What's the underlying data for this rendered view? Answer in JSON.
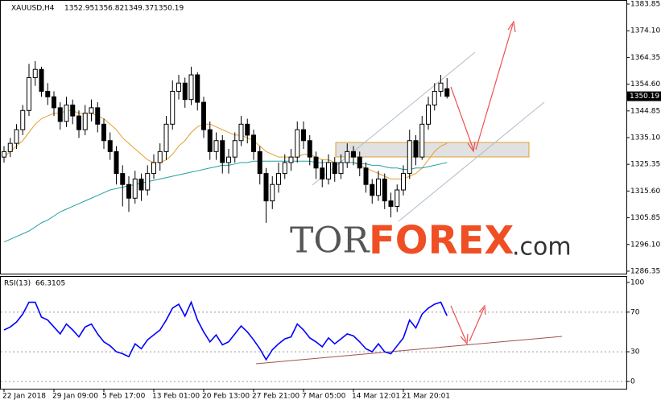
{
  "chart_data": [
    {
      "type": "candlestick",
      "title": "XAUUSD,H4",
      "watermark": {
        "part1": "TOR",
        "part2": "FOREX",
        "part3": ".com"
      },
      "categories": [
        "22 Jan 2018",
        null,
        null,
        null,
        null,
        null,
        null,
        null,
        "29 Jan 09:00",
        null,
        null,
        null,
        null,
        null,
        null,
        null,
        "5 Feb 17:00",
        null,
        null,
        null,
        null,
        null,
        null,
        null,
        "13 Feb 01:00",
        null,
        null,
        null,
        null,
        null,
        null,
        null,
        "20 Feb 13:00",
        null,
        null,
        null,
        null,
        null,
        null,
        null,
        "27 Feb 21:00",
        null,
        null,
        null,
        null,
        null,
        null,
        null,
        "7 Mar 05:00",
        null,
        null,
        null,
        null,
        null,
        null,
        null,
        "14 Mar 12:01",
        null,
        null,
        null,
        null,
        null,
        null,
        null,
        "21 Mar 20:01",
        null,
        null,
        null,
        null,
        null,
        null,
        null
      ],
      "open": [
        1328,
        1330,
        1333,
        1338,
        1345,
        1357,
        1360,
        1352,
        1350,
        1346,
        1341,
        1347,
        1343,
        1338,
        1344,
        1346,
        1340,
        1334,
        1330,
        1322,
        1318,
        1313,
        1320,
        1316,
        1322,
        1326,
        1330,
        1340,
        1352,
        1355,
        1349,
        1358,
        1348,
        1338,
        1330,
        1334,
        1326,
        1328,
        1334,
        1340,
        1336,
        1330,
        1322,
        1312,
        1318,
        1322,
        1326,
        1328,
        1338,
        1334,
        1328,
        1324,
        1320,
        1326,
        1322,
        1326,
        1330,
        1328,
        1324,
        1318,
        1314,
        1320,
        1312,
        1310,
        1316,
        1322,
        1334,
        1328,
        1340,
        1347,
        1352,
        1352.95
      ],
      "high": [
        1332,
        1335,
        1340,
        1347,
        1362,
        1363,
        1361,
        1355,
        1352,
        1348,
        1350,
        1349,
        1345,
        1347,
        1349,
        1348,
        1342,
        1337,
        1332,
        1325,
        1321,
        1323,
        1322,
        1325,
        1329,
        1333,
        1343,
        1356,
        1358,
        1357,
        1361,
        1359,
        1350,
        1341,
        1337,
        1336,
        1331,
        1337,
        1343,
        1342,
        1338,
        1332,
        1324,
        1321,
        1326,
        1329,
        1331,
        1341,
        1341,
        1336,
        1330,
        1327,
        1329,
        1328,
        1329,
        1333,
        1332,
        1330,
        1326,
        1320,
        1323,
        1322,
        1315,
        1318,
        1325,
        1338,
        1336,
        1343,
        1350,
        1355,
        1358,
        1356.82
      ],
      "low": [
        1326,
        1328,
        1331,
        1336,
        1343,
        1354,
        1350,
        1347,
        1343,
        1338,
        1339,
        1340,
        1335,
        1336,
        1341,
        1337,
        1331,
        1327,
        1318,
        1310,
        1308,
        1311,
        1312,
        1314,
        1320,
        1323,
        1327,
        1338,
        1349,
        1346,
        1347,
        1345,
        1335,
        1327,
        1327,
        1322,
        1322,
        1326,
        1332,
        1333,
        1327,
        1318,
        1304,
        1309,
        1315,
        1320,
        1323,
        1326,
        1331,
        1325,
        1320,
        1317,
        1318,
        1319,
        1320,
        1324,
        1325,
        1321,
        1315,
        1311,
        1312,
        1309,
        1306,
        1308,
        1314,
        1320,
        1325,
        1327,
        1338,
        1345,
        1350,
        1349.37
      ],
      "close": [
        1330,
        1333,
        1338,
        1345,
        1357,
        1360,
        1352,
        1350,
        1346,
        1341,
        1347,
        1343,
        1338,
        1344,
        1346,
        1340,
        1334,
        1330,
        1322,
        1318,
        1313,
        1320,
        1316,
        1322,
        1326,
        1330,
        1340,
        1352,
        1355,
        1349,
        1358,
        1348,
        1338,
        1330,
        1334,
        1326,
        1328,
        1334,
        1340,
        1336,
        1330,
        1322,
        1312,
        1318,
        1322,
        1326,
        1328,
        1338,
        1334,
        1328,
        1324,
        1320,
        1326,
        1322,
        1326,
        1330,
        1328,
        1324,
        1318,
        1314,
        1320,
        1312,
        1310,
        1316,
        1322,
        1334,
        1328,
        1340,
        1347,
        1352,
        1355,
        1350.19
      ],
      "lines": [
        {
          "color": "#e0a030",
          "values": [
            1328,
            1330,
            1332,
            1334,
            1337,
            1340,
            1342,
            1343,
            1344,
            1344,
            1345,
            1345,
            1344,
            1344,
            1344,
            1343,
            1342,
            1340,
            1338,
            1335,
            1333,
            1331,
            1329,
            1327,
            1326,
            1326,
            1327,
            1329,
            1332,
            1334,
            1337,
            1339,
            1340,
            1340,
            1339,
            1338,
            1337,
            1336,
            1336,
            1335,
            1334,
            1332,
            1330,
            1329,
            1328,
            1328,
            1328,
            1328,
            1329,
            1329,
            1328,
            1327,
            1327,
            1326,
            1326,
            1326,
            1326,
            1325,
            1324,
            1323,
            1322,
            1321,
            1320,
            1320,
            1320,
            1321,
            1322,
            1324,
            1327,
            1330,
            1332,
            1333
          ]
        },
        {
          "color": "#20a0a0",
          "values": [
            1297,
            1298,
            1299,
            1300,
            1301,
            1302.5,
            1304,
            1305,
            1306.5,
            1308,
            1309,
            1310,
            1311,
            1312,
            1313,
            1314,
            1315,
            1316,
            1316.5,
            1317,
            1317.5,
            1318,
            1318.5,
            1319,
            1319.5,
            1320,
            1320.5,
            1321,
            1321.5,
            1322,
            1322.5,
            1323,
            1323.5,
            1324,
            1324.5,
            1325,
            1325,
            1325.5,
            1326,
            1326,
            1326.5,
            1326.5,
            1326.5,
            1326.5,
            1326.5,
            1326.5,
            1326.5,
            1326.5,
            1326.5,
            1326.5,
            1326,
            1326,
            1326,
            1326,
            1326,
            1326,
            1326,
            1325.5,
            1325.5,
            1325,
            1325,
            1324.5,
            1324,
            1324,
            1323.5,
            1323.5,
            1324,
            1324,
            1324.5,
            1325,
            1325.5,
            1326
          ]
        }
      ],
      "ylim": [
        1285.46,
        1385.03
      ],
      "yticks": [
        1383.85,
        {
          "value": 1374.1,
          "label": "1374.10"
        },
        1364.35,
        {
          "value": 1354.6,
          "label": "1354.60"
        },
        1344.85,
        {
          "value": 1335.1,
          "label": "1335.10"
        },
        1325.35,
        {
          "value": 1315.6,
          "label": "1315.60"
        },
        1305.85,
        {
          "value": 1296.1,
          "label": "1296.10"
        },
        1286.35
      ]
    },
    {
      "type": "line",
      "title": "RSI(13)",
      "color": "#0000ff",
      "values": [
        52,
        55,
        60,
        68,
        80,
        80,
        65,
        62,
        55,
        48,
        58,
        52,
        45,
        55,
        58,
        48,
        40,
        36,
        30,
        28,
        25,
        38,
        33,
        42,
        47,
        52,
        62,
        74,
        78,
        66,
        80,
        62,
        50,
        40,
        47,
        37,
        40,
        48,
        56,
        50,
        42,
        33,
        22,
        32,
        38,
        43,
        45,
        58,
        52,
        44,
        40,
        35,
        44,
        38,
        43,
        48,
        46,
        40,
        33,
        30,
        38,
        30,
        28,
        36,
        44,
        62,
        54,
        68,
        74,
        78,
        80,
        66.3105
      ],
      "ylim": [
        -7.3,
        105.6
      ],
      "yticks": [
        100,
        70,
        30,
        0
      ]
    }
  ]
}
